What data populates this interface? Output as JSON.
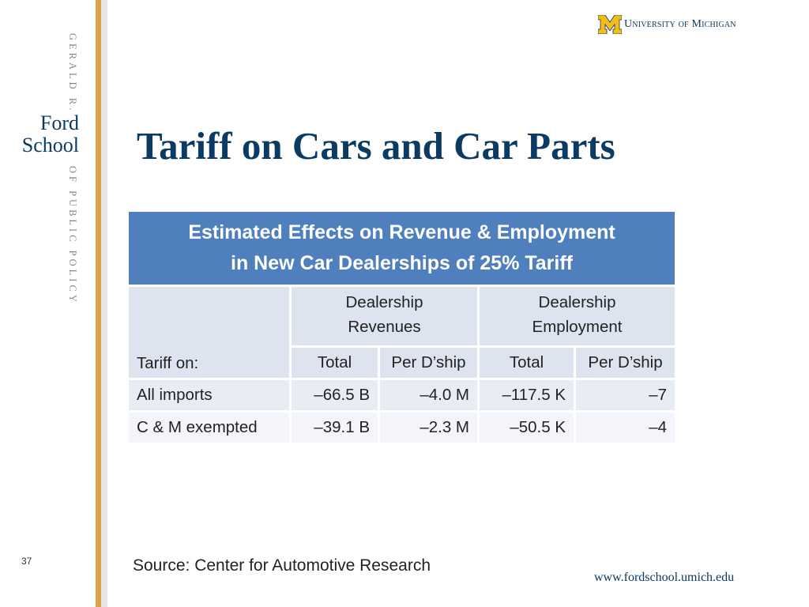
{
  "sidebar": {
    "top_text": "GERALD R.",
    "ford": "Ford",
    "school": "School",
    "bottom_text": "OF PUBLIC POLICY"
  },
  "header": {
    "university": "University of Michigan"
  },
  "title": "Tariff on Cars and Car Parts",
  "table": {
    "caption_line1": "Estimated Effects on Revenue & Employment",
    "caption_line2": "in New Car Dealerships of 25% Tariff",
    "group_revenues_1": "Dealership",
    "group_revenues_2": "Revenues",
    "group_employment_1": "Dealership",
    "group_employment_2": "Employment",
    "row_label_header": "Tariff on:",
    "col_headers": [
      "Total",
      "Per D’ship",
      "Total",
      "Per D’ship"
    ],
    "rows": [
      {
        "label": "All imports",
        "values": [
          "–66.5 B",
          "–4.0 M",
          "–117.5 K",
          "–7"
        ]
      },
      {
        "label": "C & M exempted",
        "values": [
          "–39.1 B",
          "–2.3 M",
          "–50.5 K",
          "–4"
        ]
      }
    ]
  },
  "footer": {
    "source": "Source:  Center for Automotive Research",
    "page_number": "37",
    "url": "www.fordschool.umich.edu"
  },
  "colors": {
    "navy": "#0b3a63",
    "table_header_blue": "#4f7fbd",
    "gold": "#d9a448",
    "maize": "#f2bd1a"
  }
}
